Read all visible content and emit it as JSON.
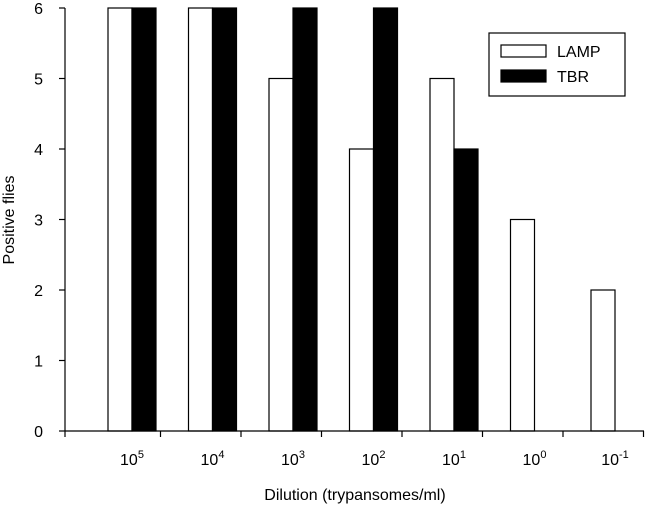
{
  "chart_data": {
    "type": "bar",
    "xlabel": "Dilution (trypansomes/ml)",
    "ylabel": "Positive flies",
    "ylim": [
      0,
      6
    ],
    "yticks": [
      "0",
      "1",
      "2",
      "3",
      "4",
      "5",
      "6"
    ],
    "categories": [
      {
        "base": "10",
        "exp": "5"
      },
      {
        "base": "10",
        "exp": "4"
      },
      {
        "base": "10",
        "exp": "3"
      },
      {
        "base": "10",
        "exp": "2"
      },
      {
        "base": "10",
        "exp": "1"
      },
      {
        "base": "10",
        "exp": "0"
      },
      {
        "base": "10",
        "exp": "-1"
      }
    ],
    "series": [
      {
        "name": "LAMP",
        "color": "#ffffff",
        "values": [
          6,
          6,
          5,
          4,
          5,
          3,
          2
        ]
      },
      {
        "name": "TBR",
        "color": "#000000",
        "values": [
          6,
          6,
          6,
          6,
          4,
          0,
          0
        ]
      }
    ],
    "legend": "top-right",
    "grid": false
  }
}
